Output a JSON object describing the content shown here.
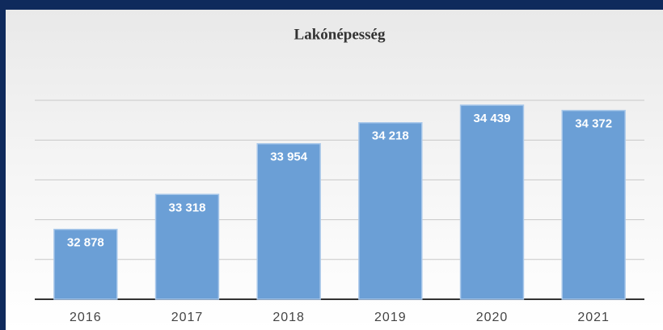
{
  "chart_data": {
    "type": "bar",
    "title": "Lakónépesség",
    "categories": [
      "2016",
      "2017",
      "2018",
      "2019",
      "2020",
      "2021"
    ],
    "values": [
      32878,
      33318,
      33954,
      34218,
      34439,
      34372
    ],
    "value_labels": [
      "32 878",
      "33 318",
      "33 954",
      "34 218",
      "34 439",
      "34 372"
    ],
    "color": "#6b9fd6",
    "ylim": [
      32000,
      34500
    ],
    "yticks": [
      32000,
      32500,
      33000,
      33500,
      34000,
      34500
    ],
    "grid": true
  }
}
